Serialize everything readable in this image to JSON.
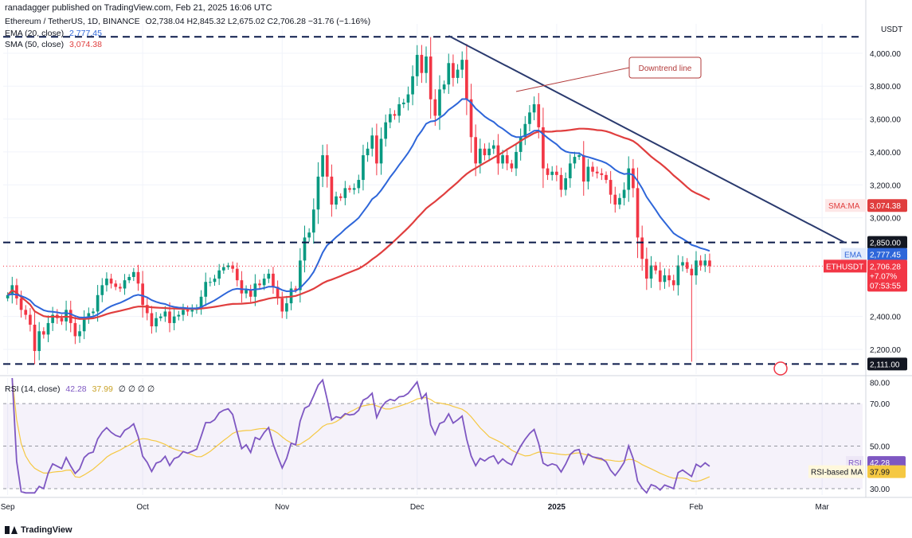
{
  "header": {
    "published": "ranadagger published on TradingView.com, Feb 21, 2025 16:06 UTC",
    "symbol": "Ethereum / TetherUS, 1D, BINANCE",
    "ohlc": "O2,738.04  H2,845.32  L2,675.02  C2,706.28  −31.76 (−1.16%)",
    "ema_label": "EMA (20, close)",
    "ema_value": "2,777.45",
    "sma_label": "SMA (50, close)",
    "sma_value": "3,074.38",
    "rsi_label": "RSI (14, close)",
    "rsi_value": "42.28",
    "rsi_ma_value": "37.99",
    "rsi_extra": "∅  ∅  ∅  ∅"
  },
  "brand": "TradingView",
  "chart_data": {
    "type": "candlestick",
    "currency": "USDT",
    "price_axis": {
      "ylim": [
        2050,
        4130
      ],
      "ticks": [
        "4,000.00",
        "3,800.00",
        "3,600.00",
        "3,400.00",
        "3,200.00",
        "3,000.00",
        "2,400.00",
        "2,200.00"
      ],
      "tick_values": [
        4000,
        3800,
        3600,
        3400,
        3200,
        3000,
        2400,
        2200
      ]
    },
    "x_axis": {
      "labels": [
        "Sep",
        "Oct",
        "Nov",
        "Dec",
        "2025",
        "Feb",
        "Mar"
      ],
      "label_days": [
        0,
        30,
        61,
        91,
        122,
        153,
        181
      ],
      "xlim": [
        -1,
        190
      ]
    },
    "closes": [
      2530,
      2590,
      2510,
      2440,
      2410,
      2350,
      2190,
      2310,
      2290,
      2360,
      2410,
      2390,
      2370,
      2440,
      2360,
      2280,
      2310,
      2390,
      2420,
      2430,
      2530,
      2590,
      2630,
      2600,
      2580,
      2570,
      2620,
      2640,
      2670,
      2600,
      2470,
      2420,
      2340,
      2390,
      2400,
      2430,
      2360,
      2400,
      2410,
      2440,
      2430,
      2440,
      2450,
      2520,
      2610,
      2610,
      2630,
      2680,
      2700,
      2710,
      2690,
      2620,
      2540,
      2560,
      2520,
      2600,
      2590,
      2630,
      2660,
      2580,
      2510,
      2430,
      2480,
      2570,
      2560,
      2740,
      2880,
      2910,
      3050,
      3250,
      3380,
      3250,
      3080,
      3130,
      3120,
      3180,
      3170,
      3180,
      3230,
      3380,
      3420,
      3500,
      3330,
      3480,
      3580,
      3630,
      3620,
      3690,
      3700,
      3750,
      3860,
      3990,
      3880,
      3980,
      3720,
      3620,
      3780,
      3810,
      3940,
      3850,
      3900,
      3960,
      3720,
      3490,
      3330,
      3420,
      3380,
      3420,
      3440,
      3330,
      3380,
      3330,
      3300,
      3400,
      3490,
      3570,
      3640,
      3690,
      3550,
      3300,
      3260,
      3280,
      3260,
      3170,
      3240,
      3330,
      3370,
      3380,
      3220,
      3310,
      3280,
      3270,
      3260,
      3230,
      3140,
      3080,
      3120,
      3170,
      3300,
      3180,
      2880,
      2750,
      2630,
      2710,
      2680,
      2610,
      2650,
      2620,
      2590,
      2710,
      2730,
      2690,
      2650,
      2740,
      2710,
      2740,
      2706
    ],
    "ema20_last": 2777.45,
    "sma50_last": 3074.38,
    "levels": [
      {
        "value": 4100,
        "label": ""
      },
      {
        "value": 2850,
        "label": "2,850.00"
      },
      {
        "value": 2111,
        "label": "2,111.00"
      }
    ],
    "downtrend_line": {
      "from": [
        98,
        4106
      ],
      "to": [
        186,
        2850
      ]
    },
    "annotation": {
      "text": "Downtrend line",
      "at_day": 113,
      "at_value": 3767
    },
    "badges": {
      "sma": {
        "name": "SMA:MA",
        "value": "3,074.38",
        "color": "#e03e3e"
      },
      "ema": {
        "name": "EMA",
        "value": "2,777.45",
        "color": "#2e66d9"
      },
      "price": {
        "name": "ETHUSDT",
        "value": "2,706.28",
        "change": "+7.07%",
        "timer": "07:53:55",
        "color": "#f23645"
      }
    },
    "rsi": {
      "ylim": [
        27,
        82
      ],
      "ticks": [
        "80.00",
        "70.00",
        "50.00",
        "30.00"
      ],
      "tick_values": [
        80,
        70,
        50,
        30
      ],
      "band": [
        30,
        70
      ],
      "ma_last": 37.99,
      "badges": {
        "rsi": "42.28",
        "ma": "37.99",
        "rsi_name": "RSI",
        "ma_name": "RSI-based MA"
      }
    },
    "colors": {
      "up": "#089981",
      "down": "#f23645",
      "ema": "#2e66d9",
      "sma": "#e03e3e",
      "rsi": "#7e57c2",
      "rsi_ma": "#f5c842",
      "trend": "#2a3a6e",
      "grid": "#f0f3fa"
    }
  }
}
